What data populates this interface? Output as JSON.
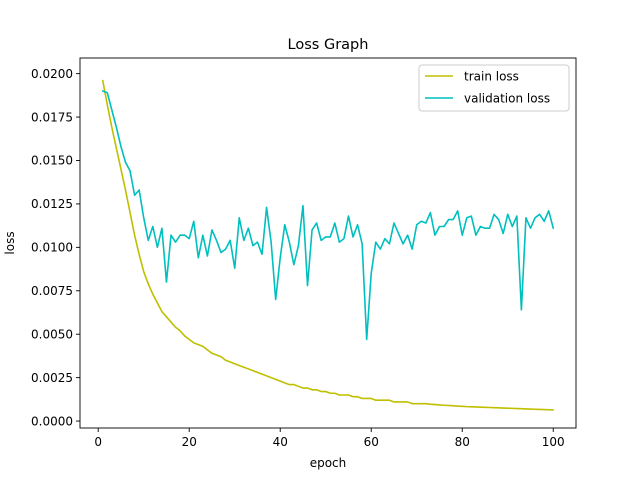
{
  "chart_data": {
    "type": "line",
    "title": "Loss Graph",
    "xlabel": "epoch",
    "ylabel": "loss",
    "xlim": [
      -4,
      105
    ],
    "ylim": [
      -0.0004,
      0.0209
    ],
    "x_ticks": [
      0,
      20,
      40,
      60,
      80,
      100
    ],
    "x_tick_labels": [
      "0",
      "20",
      "40",
      "60",
      "80",
      "100"
    ],
    "y_ticks": [
      0,
      0.0025,
      0.005,
      0.0075,
      0.01,
      0.0125,
      0.015,
      0.0175,
      0.02
    ],
    "y_tick_labels": [
      "0.0000",
      "0.0025",
      "0.0050",
      "0.0075",
      "0.0100",
      "0.0125",
      "0.0150",
      "0.0175",
      "0.0200"
    ],
    "grid": false,
    "legend_position": "top-right",
    "x": [
      1,
      2,
      3,
      4,
      5,
      6,
      7,
      8,
      9,
      10,
      11,
      12,
      13,
      14,
      15,
      16,
      17,
      18,
      19,
      20,
      21,
      22,
      23,
      24,
      25,
      26,
      27,
      28,
      29,
      30,
      31,
      32,
      33,
      34,
      35,
      36,
      37,
      38,
      39,
      40,
      41,
      42,
      43,
      44,
      45,
      46,
      47,
      48,
      49,
      50,
      51,
      52,
      53,
      54,
      55,
      56,
      57,
      58,
      59,
      60,
      61,
      62,
      63,
      64,
      65,
      66,
      67,
      68,
      69,
      70,
      71,
      72,
      73,
      74,
      75,
      76,
      77,
      78,
      79,
      80,
      81,
      82,
      83,
      84,
      85,
      86,
      87,
      88,
      89,
      90,
      91,
      92,
      93,
      94,
      95,
      96,
      97,
      98,
      99,
      100
    ],
    "series": [
      {
        "name": "train loss",
        "color": "#bfbf00",
        "values": [
          0.0196,
          0.0182,
          0.0169,
          0.0157,
          0.0145,
          0.0133,
          0.012,
          0.0107,
          0.0096,
          0.0086,
          0.0079,
          0.0073,
          0.0068,
          0.0063,
          0.006,
          0.0057,
          0.0054,
          0.0052,
          0.0049,
          0.0047,
          0.0045,
          0.0044,
          0.0043,
          0.0041,
          0.0039,
          0.0038,
          0.0037,
          0.0035,
          0.0034,
          0.0033,
          0.0032,
          0.0031,
          0.003,
          0.0029,
          0.0028,
          0.0027,
          0.0026,
          0.0025,
          0.0024,
          0.0023,
          0.0022,
          0.0021,
          0.0021,
          0.002,
          0.0019,
          0.0019,
          0.0018,
          0.0018,
          0.0017,
          0.0017,
          0.0016,
          0.0016,
          0.0015,
          0.0015,
          0.0015,
          0.0014,
          0.0014,
          0.0013,
          0.0013,
          0.0013,
          0.0012,
          0.0012,
          0.0012,
          0.0012,
          0.0011,
          0.0011,
          0.0011,
          0.0011,
          0.001,
          0.001,
          0.001,
          0.001,
          0.00097,
          0.00095,
          0.00093,
          0.00091,
          0.0009,
          0.00088,
          0.00086,
          0.00085,
          0.00083,
          0.00082,
          0.00081,
          0.0008,
          0.00079,
          0.00078,
          0.00077,
          0.00076,
          0.00075,
          0.00074,
          0.00073,
          0.00072,
          0.00071,
          0.0007,
          0.00069,
          0.00068,
          0.00067,
          0.00066,
          0.00065,
          0.00064
        ]
      },
      {
        "name": "validation loss",
        "color": "#00bfbf",
        "values": [
          0.019,
          0.0189,
          0.0179,
          0.0169,
          0.0158,
          0.0149,
          0.0144,
          0.013,
          0.0133,
          0.0117,
          0.0104,
          0.0112,
          0.01,
          0.0111,
          0.008,
          0.0107,
          0.0103,
          0.0107,
          0.0107,
          0.0105,
          0.0115,
          0.0094,
          0.0107,
          0.0095,
          0.011,
          0.0104,
          0.0097,
          0.0099,
          0.0104,
          0.0088,
          0.0117,
          0.0104,
          0.0111,
          0.0101,
          0.0103,
          0.0096,
          0.0123,
          0.0103,
          0.007,
          0.0094,
          0.0113,
          0.0103,
          0.009,
          0.0101,
          0.0124,
          0.0078,
          0.011,
          0.0114,
          0.0104,
          0.0106,
          0.0106,
          0.0114,
          0.0103,
          0.0105,
          0.0118,
          0.0106,
          0.0113,
          0.0102,
          0.0047,
          0.0085,
          0.0103,
          0.0099,
          0.0105,
          0.0102,
          0.0114,
          0.0108,
          0.0102,
          0.0107,
          0.0099,
          0.0113,
          0.0115,
          0.0114,
          0.012,
          0.0107,
          0.0112,
          0.0112,
          0.0116,
          0.0116,
          0.0121,
          0.0107,
          0.0117,
          0.0118,
          0.0107,
          0.0112,
          0.0111,
          0.0111,
          0.0119,
          0.0116,
          0.0108,
          0.0119,
          0.0112,
          0.0118,
          0.0064,
          0.0117,
          0.0111,
          0.0117,
          0.0119,
          0.0115,
          0.0121,
          0.0111
        ]
      }
    ]
  }
}
